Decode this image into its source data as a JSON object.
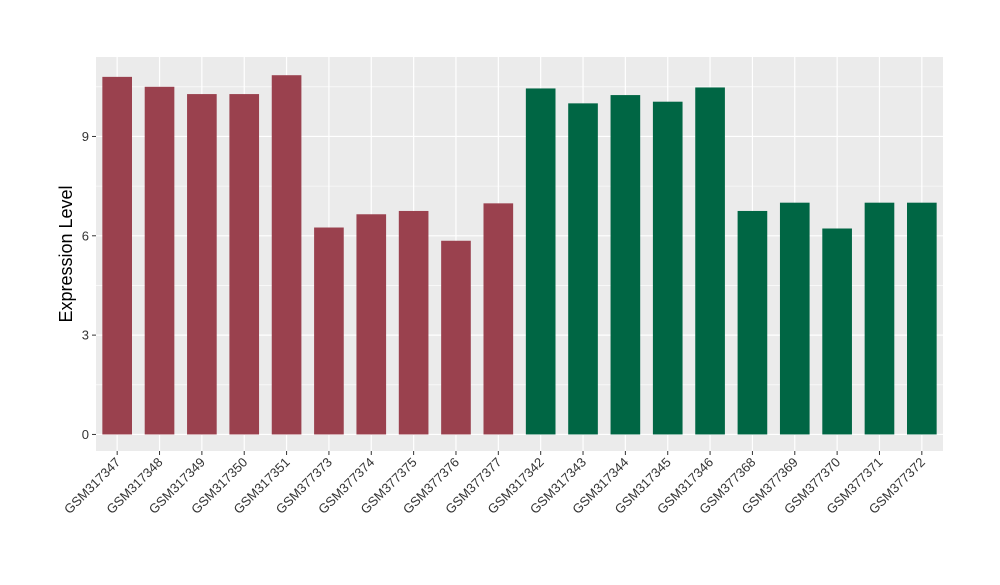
{
  "chart_data": {
    "type": "bar",
    "title": "",
    "xlabel": "",
    "ylabel": "Expression Level",
    "ylim": [
      -0.5,
      11.4
    ],
    "yticks": [
      0,
      3,
      6,
      9
    ],
    "grid": true,
    "legend": "none",
    "colors": {
      "group1": "#9a414e",
      "group2": "#006644",
      "panel": "#ebebeb",
      "gridline": "#ffffff"
    },
    "categories": [
      "GSM317347",
      "GSM317348",
      "GSM317349",
      "GSM317350",
      "GSM317351",
      "GSM377373",
      "GSM377374",
      "GSM377375",
      "GSM377376",
      "GSM377377",
      "GSM317342",
      "GSM317343",
      "GSM317344",
      "GSM317345",
      "GSM317346",
      "GSM377368",
      "GSM377369",
      "GSM377370",
      "GSM377371",
      "GSM377372"
    ],
    "values": [
      10.8,
      10.5,
      10.28,
      10.28,
      10.85,
      6.25,
      6.65,
      6.75,
      5.85,
      6.98,
      10.45,
      10.0,
      10.25,
      10.05,
      10.48,
      6.75,
      7.0,
      6.22,
      7.0,
      7.0
    ],
    "groups": [
      1,
      1,
      1,
      1,
      1,
      1,
      1,
      1,
      1,
      1,
      2,
      2,
      2,
      2,
      2,
      2,
      2,
      2,
      2,
      2
    ]
  }
}
